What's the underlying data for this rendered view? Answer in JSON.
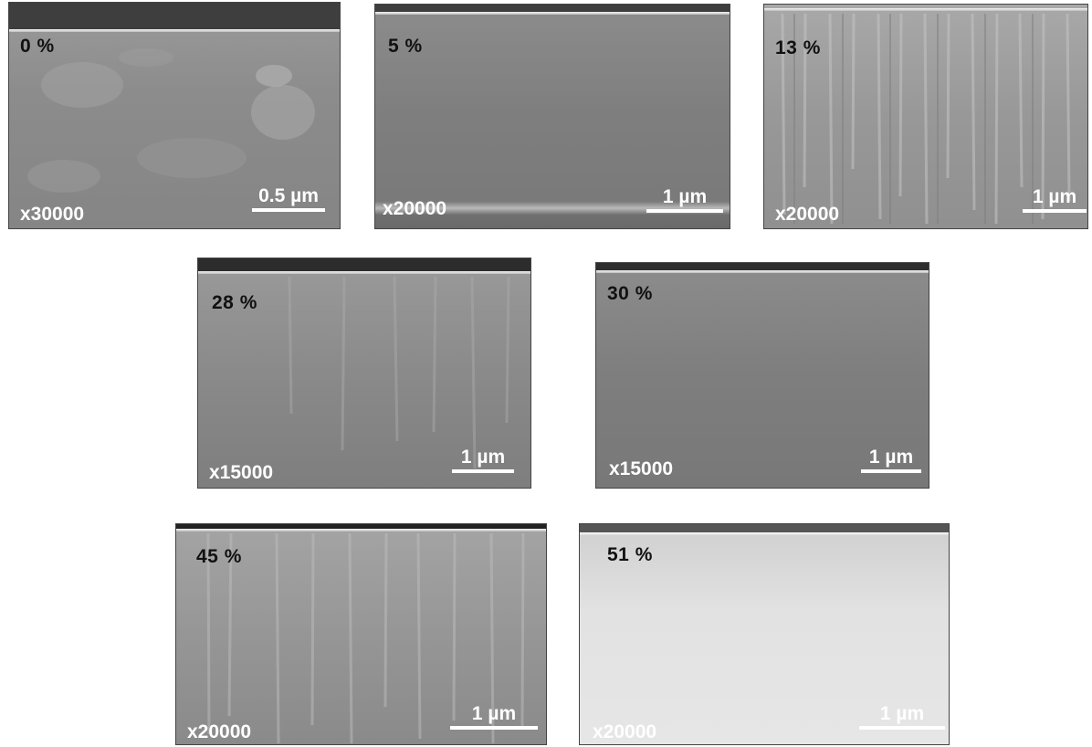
{
  "panels": [
    {
      "percent": "0 %",
      "magnification": "x30000",
      "scale": "0.5 µm"
    },
    {
      "percent": "5 %",
      "magnification": "x20000",
      "scale": "1 µm"
    },
    {
      "percent": "13 %",
      "magnification": "x20000",
      "scale": "1 µm"
    },
    {
      "percent": "28 %",
      "magnification": "x15000",
      "scale": "1 µm"
    },
    {
      "percent": "30 %",
      "magnification": "x15000",
      "scale": "1 µm"
    },
    {
      "percent": "45 %",
      "magnification": "x20000",
      "scale": "1 µm"
    },
    {
      "percent": "51 %",
      "magnification": "x20000",
      "scale": "1 µm"
    }
  ],
  "colors": {
    "label_dark": "#111111",
    "label_light": "#ffffff"
  }
}
